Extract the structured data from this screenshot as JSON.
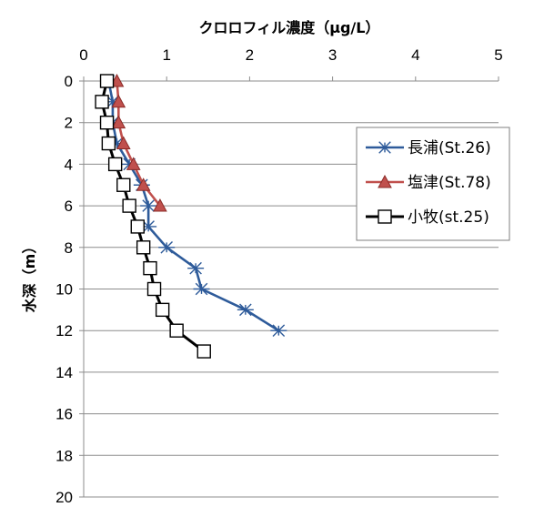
{
  "chart_data": {
    "type": "line",
    "x_axis": {
      "label": "クロロフィル濃度（μg/L）",
      "position": "top",
      "range": [
        0,
        5
      ],
      "ticks": [
        "0",
        "1",
        "2",
        "3",
        "4",
        "5"
      ]
    },
    "y_axis": {
      "label": "水深（m）",
      "inverted": true,
      "range": [
        0,
        20
      ],
      "ticks": [
        "0",
        "2",
        "4",
        "6",
        "8",
        "10",
        "12",
        "14",
        "16",
        "18",
        "20"
      ]
    },
    "grid": "horizontal",
    "legend": {
      "placement": "right"
    },
    "series": [
      {
        "name": "長浦(St.26)",
        "color": "#2e5b9a",
        "marker": "asterisk",
        "points": [
          {
            "x": 0.3,
            "y": 0
          },
          {
            "x": 0.35,
            "y": 1
          },
          {
            "x": 0.35,
            "y": 2
          },
          {
            "x": 0.4,
            "y": 3
          },
          {
            "x": 0.55,
            "y": 4
          },
          {
            "x": 0.7,
            "y": 5
          },
          {
            "x": 0.78,
            "y": 6
          },
          {
            "x": 0.78,
            "y": 7
          },
          {
            "x": 1.0,
            "y": 8
          },
          {
            "x": 1.35,
            "y": 9
          },
          {
            "x": 1.42,
            "y": 10
          },
          {
            "x": 1.95,
            "y": 11
          },
          {
            "x": 2.35,
            "y": 12
          }
        ]
      },
      {
        "name": "塩津(St.78)",
        "color": "#c0504d",
        "marker": "triangle",
        "points": [
          {
            "x": 0.4,
            "y": 0
          },
          {
            "x": 0.42,
            "y": 1
          },
          {
            "x": 0.42,
            "y": 2
          },
          {
            "x": 0.48,
            "y": 3
          },
          {
            "x": 0.6,
            "y": 4
          },
          {
            "x": 0.72,
            "y": 5
          },
          {
            "x": 0.92,
            "y": 6
          }
        ]
      },
      {
        "name": "小牧(st.25)",
        "color": "#000000",
        "marker": "square",
        "points": [
          {
            "x": 0.28,
            "y": 0
          },
          {
            "x": 0.22,
            "y": 1
          },
          {
            "x": 0.28,
            "y": 2
          },
          {
            "x": 0.3,
            "y": 3
          },
          {
            "x": 0.38,
            "y": 4
          },
          {
            "x": 0.48,
            "y": 5
          },
          {
            "x": 0.55,
            "y": 6
          },
          {
            "x": 0.65,
            "y": 7
          },
          {
            "x": 0.72,
            "y": 8
          },
          {
            "x": 0.8,
            "y": 9
          },
          {
            "x": 0.85,
            "y": 10
          },
          {
            "x": 0.95,
            "y": 11
          },
          {
            "x": 1.12,
            "y": 12
          },
          {
            "x": 1.45,
            "y": 13
          }
        ]
      }
    ]
  }
}
